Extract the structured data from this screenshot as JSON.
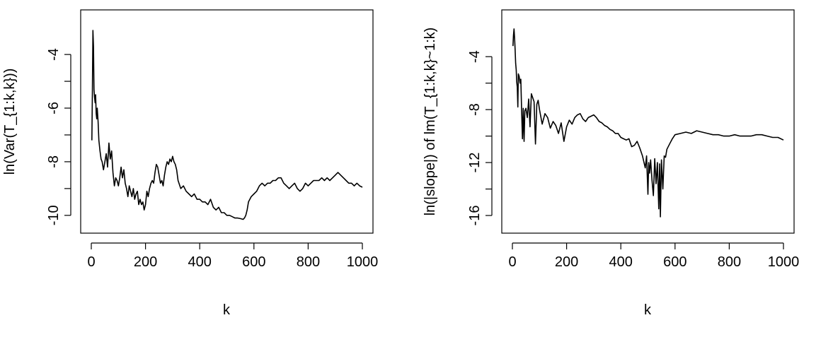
{
  "chart_data": [
    {
      "type": "line",
      "title": "",
      "xlabel": "k",
      "ylabel": "ln(Var(T_{1:k,k}))",
      "xlim": [
        0,
        1000
      ],
      "ylim": [
        -10.4,
        -2.6
      ],
      "xticks": [
        0,
        200,
        400,
        600,
        800,
        1000
      ],
      "yticks": [
        -4,
        -6,
        -8,
        -10
      ],
      "color": "#000000",
      "series": [
        {
          "x": [
            2,
            4,
            6,
            8,
            10,
            12,
            14,
            16,
            18,
            20,
            22,
            25,
            28,
            32,
            36,
            40,
            45,
            50,
            55,
            60,
            65,
            70,
            75,
            80,
            85,
            90,
            95,
            100,
            105,
            110,
            115,
            120,
            125,
            130,
            135,
            140,
            145,
            150,
            155,
            160,
            165,
            170,
            175,
            180,
            185,
            190,
            195,
            200,
            205,
            210,
            215,
            220,
            225,
            230,
            235,
            240,
            245,
            250,
            255,
            260,
            265,
            270,
            275,
            280,
            285,
            290,
            295,
            300,
            305,
            310,
            315,
            320,
            330,
            340,
            350,
            360,
            370,
            380,
            390,
            400,
            410,
            420,
            430,
            440,
            450,
            460,
            470,
            480,
            490,
            500,
            510,
            520,
            530,
            540,
            550,
            560,
            565,
            570,
            575,
            580,
            590,
            600,
            610,
            620,
            630,
            640,
            650,
            660,
            670,
            680,
            690,
            700,
            710,
            720,
            730,
            740,
            750,
            760,
            770,
            780,
            790,
            800,
            810,
            820,
            830,
            840,
            850,
            860,
            870,
            880,
            890,
            900,
            910,
            920,
            930,
            940,
            950,
            960,
            970,
            980,
            990,
            1000
          ],
          "values": [
            -7.2,
            -5.5,
            -3.1,
            -3.7,
            -5.3,
            -5.6,
            -5.8,
            -5.5,
            -6.2,
            -6.4,
            -6.0,
            -6.5,
            -7.2,
            -7.6,
            -7.9,
            -8.0,
            -8.3,
            -8.0,
            -7.7,
            -8.2,
            -7.3,
            -7.9,
            -7.6,
            -8.4,
            -8.9,
            -8.6,
            -8.7,
            -8.9,
            -8.6,
            -8.2,
            -8.6,
            -8.3,
            -8.8,
            -9.0,
            -9.3,
            -8.9,
            -9.1,
            -9.3,
            -9.0,
            -9.4,
            -9.2,
            -9.1,
            -9.6,
            -9.4,
            -9.6,
            -9.5,
            -9.8,
            -9.6,
            -9.1,
            -9.3,
            -9.0,
            -8.8,
            -8.7,
            -8.8,
            -8.4,
            -8.1,
            -8.2,
            -8.5,
            -8.8,
            -8.7,
            -8.9,
            -8.5,
            -8.2,
            -8.0,
            -8.1,
            -7.9,
            -8.0,
            -7.8,
            -8.0,
            -8.1,
            -8.3,
            -8.7,
            -9.0,
            -8.9,
            -9.1,
            -9.2,
            -9.3,
            -9.2,
            -9.4,
            -9.4,
            -9.5,
            -9.5,
            -9.6,
            -9.4,
            -9.7,
            -9.8,
            -9.7,
            -9.9,
            -9.9,
            -10.0,
            -10.0,
            -10.05,
            -10.1,
            -10.1,
            -10.12,
            -10.15,
            -10.1,
            -10.0,
            -9.8,
            -9.5,
            -9.3,
            -9.2,
            -9.1,
            -8.9,
            -8.8,
            -8.9,
            -8.8,
            -8.8,
            -8.7,
            -8.7,
            -8.6,
            -8.6,
            -8.8,
            -8.9,
            -9.0,
            -8.9,
            -8.8,
            -9.0,
            -9.1,
            -9.0,
            -8.8,
            -8.9,
            -8.8,
            -8.7,
            -8.7,
            -8.7,
            -8.6,
            -8.7,
            -8.6,
            -8.7,
            -8.6,
            -8.5,
            -8.4,
            -8.5,
            -8.6,
            -8.7,
            -8.8,
            -8.8,
            -8.9,
            -8.8,
            -8.9,
            -8.95
          ]
        }
      ]
    },
    {
      "type": "line",
      "title": "",
      "xlabel": "k",
      "ylabel": "ln(|slope|) of lm(T_{1:k,k}~1:k)",
      "xlim": [
        0,
        1000
      ],
      "ylim": [
        -16.8,
        -1.0
      ],
      "xticks": [
        0,
        200,
        400,
        600,
        800,
        1000
      ],
      "yticks": [
        -4,
        -8,
        -12,
        -16
      ],
      "color": "#000000",
      "series": [
        {
          "x": [
            2,
            4,
            6,
            8,
            10,
            12,
            14,
            16,
            18,
            20,
            22,
            25,
            28,
            31,
            34,
            37,
            40,
            43,
            46,
            50,
            55,
            60,
            65,
            70,
            75,
            80,
            85,
            90,
            95,
            100,
            110,
            120,
            130,
            140,
            150,
            160,
            170,
            180,
            190,
            200,
            210,
            220,
            230,
            240,
            250,
            260,
            270,
            280,
            290,
            300,
            310,
            320,
            330,
            340,
            350,
            360,
            370,
            380,
            390,
            400,
            410,
            420,
            430,
            440,
            450,
            460,
            470,
            480,
            490,
            495,
            500,
            503,
            506,
            510,
            515,
            520,
            525,
            530,
            535,
            540,
            543,
            546,
            550,
            555,
            560,
            565,
            570,
            580,
            590,
            600,
            620,
            640,
            660,
            680,
            700,
            720,
            740,
            760,
            780,
            800,
            820,
            840,
            860,
            880,
            900,
            920,
            940,
            960,
            980,
            1000
          ],
          "values": [
            -3.2,
            -2.4,
            -1.9,
            -2.6,
            -3.4,
            -4.5,
            -5.0,
            -5.9,
            -6.3,
            -7.8,
            -5.3,
            -5.5,
            -6.0,
            -5.7,
            -8.0,
            -10.2,
            -7.9,
            -10.4,
            -8.1,
            -7.9,
            -8.6,
            -7.2,
            -9.3,
            -6.8,
            -7.1,
            -7.4,
            -10.6,
            -7.6,
            -7.3,
            -8.0,
            -9.1,
            -8.3,
            -8.6,
            -9.4,
            -8.9,
            -9.2,
            -9.8,
            -9.0,
            -10.4,
            -9.3,
            -8.8,
            -9.1,
            -8.6,
            -8.4,
            -8.3,
            -8.7,
            -8.9,
            -8.6,
            -8.5,
            -8.4,
            -8.6,
            -8.9,
            -9.0,
            -9.2,
            -9.3,
            -9.5,
            -9.6,
            -9.8,
            -9.8,
            -10.1,
            -10.2,
            -10.3,
            -10.2,
            -10.8,
            -10.7,
            -10.4,
            -10.9,
            -11.5,
            -12.4,
            -11.5,
            -14.4,
            -12.0,
            -12.8,
            -11.8,
            -13.3,
            -14.5,
            -11.7,
            -13.6,
            -12.0,
            -15.5,
            -12.1,
            -16.1,
            -11.8,
            -14.0,
            -11.5,
            -11.6,
            -11.0,
            -10.6,
            -10.2,
            -9.9,
            -9.8,
            -9.7,
            -9.8,
            -9.6,
            -9.7,
            -9.8,
            -9.9,
            -9.9,
            -10.0,
            -10.0,
            -9.9,
            -10.0,
            -10.0,
            -10.0,
            -9.9,
            -9.9,
            -10.0,
            -10.1,
            -10.1,
            -10.3
          ]
        }
      ]
    }
  ]
}
